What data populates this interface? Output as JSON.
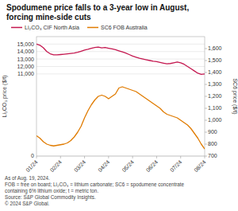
{
  "chart_data": {
    "type": "line",
    "title": "Spodumene price falls to a 3-year low in August,\nforcing mine-side cuts",
    "ylabel": "Li₂CO₃ price ($/t)",
    "y2label": "SC6 price ($/t)",
    "annotations": [
      "As of Aug. 19, 2024.",
      "FOB = free on board; Li₂CO₃ = lithium carbonate; SC6 = spodumene concentrate",
      "containing 6% lithium oxide; t = metric ton.",
      "Source: S&P Global Commodity Insights.",
      "© 2024 S&P Global."
    ],
    "categories": [
      "01/24",
      null,
      null,
      null,
      null,
      null,
      null,
      "02/24",
      null,
      null,
      null,
      null,
      null,
      null,
      "03/24",
      null,
      null,
      null,
      null,
      null,
      null,
      "04/24",
      null,
      null,
      null,
      null,
      null,
      null,
      "05/24",
      null,
      null,
      null,
      null,
      null,
      null,
      "06/24",
      null,
      null,
      null,
      null,
      null,
      null,
      "07/24",
      null,
      null,
      null,
      null,
      null,
      null,
      "08/24"
    ],
    "series": [
      {
        "name": "Li₂CO₃ CIF North Asia",
        "color": "#c4174f",
        "values": [
          15000,
          14850,
          14500,
          14000,
          13700,
          13550,
          13550,
          13600,
          13650,
          13700,
          13750,
          13800,
          13900,
          14050,
          14200,
          14300,
          14450,
          14550,
          14600,
          14500,
          14550,
          14450,
          14350,
          14250,
          14100,
          13950,
          13800,
          13600,
          13400,
          13250,
          13100,
          13000,
          12900,
          12800,
          12700,
          12650,
          12550,
          12450,
          12350,
          12400,
          12500,
          12600,
          12500,
          12300,
          12000,
          11700,
          11400,
          11100,
          10950,
          11000
        ]
      },
      {
        "name": "SC6 FOB Australia",
        "color": "#e07b00",
        "axis": "y2",
        "values": [
          870,
          850,
          820,
          800,
          790,
          785,
          790,
          795,
          800,
          810,
          830,
          860,
          900,
          950,
          1020,
          1080,
          1130,
          1170,
          1200,
          1210,
          1200,
          1180,
          1200,
          1220,
          1270,
          1280,
          1270,
          1260,
          1250,
          1240,
          1220,
          1200,
          1180,
          1160,
          1140,
          1120,
          1100,
          1070,
          1050,
          1040,
          1030,
          1020,
          1000,
          980,
          960,
          930,
          890,
          850,
          800,
          760
        ]
      }
    ],
    "ylim": [
      0,
      16000
    ],
    "yticks": [
      0,
      {
        "value": 11000,
        "label": "11,000"
      },
      {
        "value": 12000,
        "label": "12,000"
      },
      {
        "value": 13000,
        "label": "13,000"
      },
      {
        "value": 14000,
        "label": "14,000"
      },
      {
        "value": 15000,
        "label": "15,000"
      }
    ],
    "y2lim": [
      700,
      1700
    ],
    "y2ticks": [
      700,
      800,
      900,
      {
        "value": 1000,
        "label": "1,000"
      },
      {
        "value": 1100,
        "label": "1,100"
      },
      {
        "value": 1200,
        "label": "1,200"
      },
      {
        "value": 1300,
        "label": "1,300"
      },
      {
        "value": 1400,
        "label": "1,400"
      },
      {
        "value": 1500,
        "label": "1,500"
      },
      {
        "value": 1600,
        "label": "1,600"
      }
    ],
    "grid": true,
    "legend": "top-left"
  }
}
